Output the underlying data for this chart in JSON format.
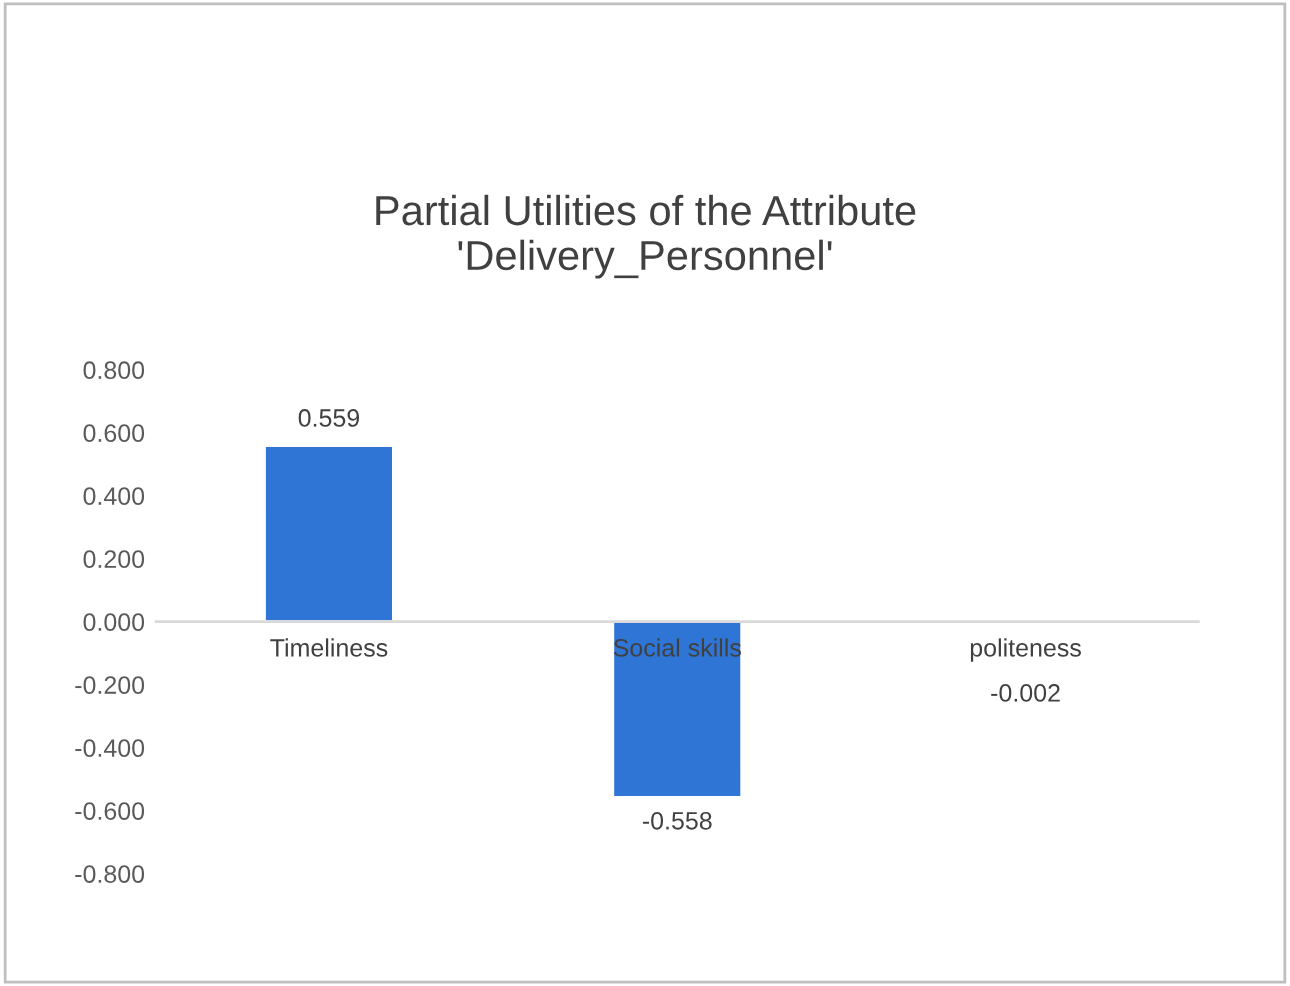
{
  "chart_data": {
    "type": "bar",
    "title": "Partial Utilities of the Attribute\n'Delivery_Personnel'",
    "categories": [
      "Timeliness",
      "Social skills",
      "politeness"
    ],
    "values": [
      0.559,
      -0.558,
      -0.002
    ],
    "color": "#2f75d6",
    "ylim": [
      -0.8,
      0.8
    ],
    "yticks": [
      {
        "value": -0.8,
        "label": "-0.800"
      },
      {
        "value": -0.6,
        "label": "-0.600"
      },
      {
        "value": -0.4,
        "label": "-0.400"
      },
      {
        "value": -0.2,
        "label": "-0.200"
      },
      {
        "value": 0,
        "label": "0.000"
      },
      {
        "value": 0.2,
        "label": "0.200"
      },
      {
        "value": 0.4,
        "label": "0.400"
      },
      {
        "value": 0.6,
        "label": "0.600"
      },
      {
        "value": 0.8,
        "label": "0.800"
      }
    ],
    "data_labels": true,
    "grid": false,
    "legend": false
  }
}
